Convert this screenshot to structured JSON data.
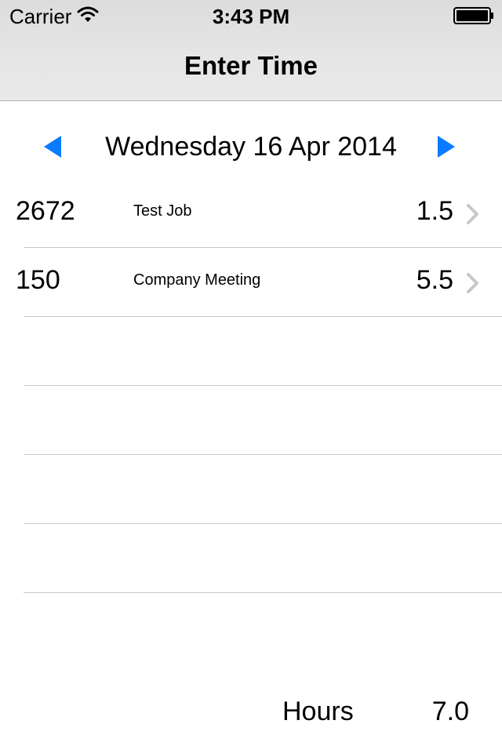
{
  "status_bar": {
    "carrier": "Carrier",
    "time": "3:43 PM",
    "wifi_icon": "wifi-icon",
    "battery_icon": "battery-icon"
  },
  "nav": {
    "title": "Enter Time"
  },
  "date_selector": {
    "date": "Wednesday 16 Apr 2014",
    "prev_icon": "triangle-left-icon",
    "next_icon": "triangle-right-icon",
    "accent_color": "#0a7bff"
  },
  "entries": [
    {
      "job_number": "2672",
      "job_name": "Test Job",
      "hours": "1.5"
    },
    {
      "job_number": "150",
      "job_name": "Company Meeting",
      "hours": "5.5"
    }
  ],
  "footer": {
    "hours_label": "Hours",
    "hours_total": "7.0"
  }
}
